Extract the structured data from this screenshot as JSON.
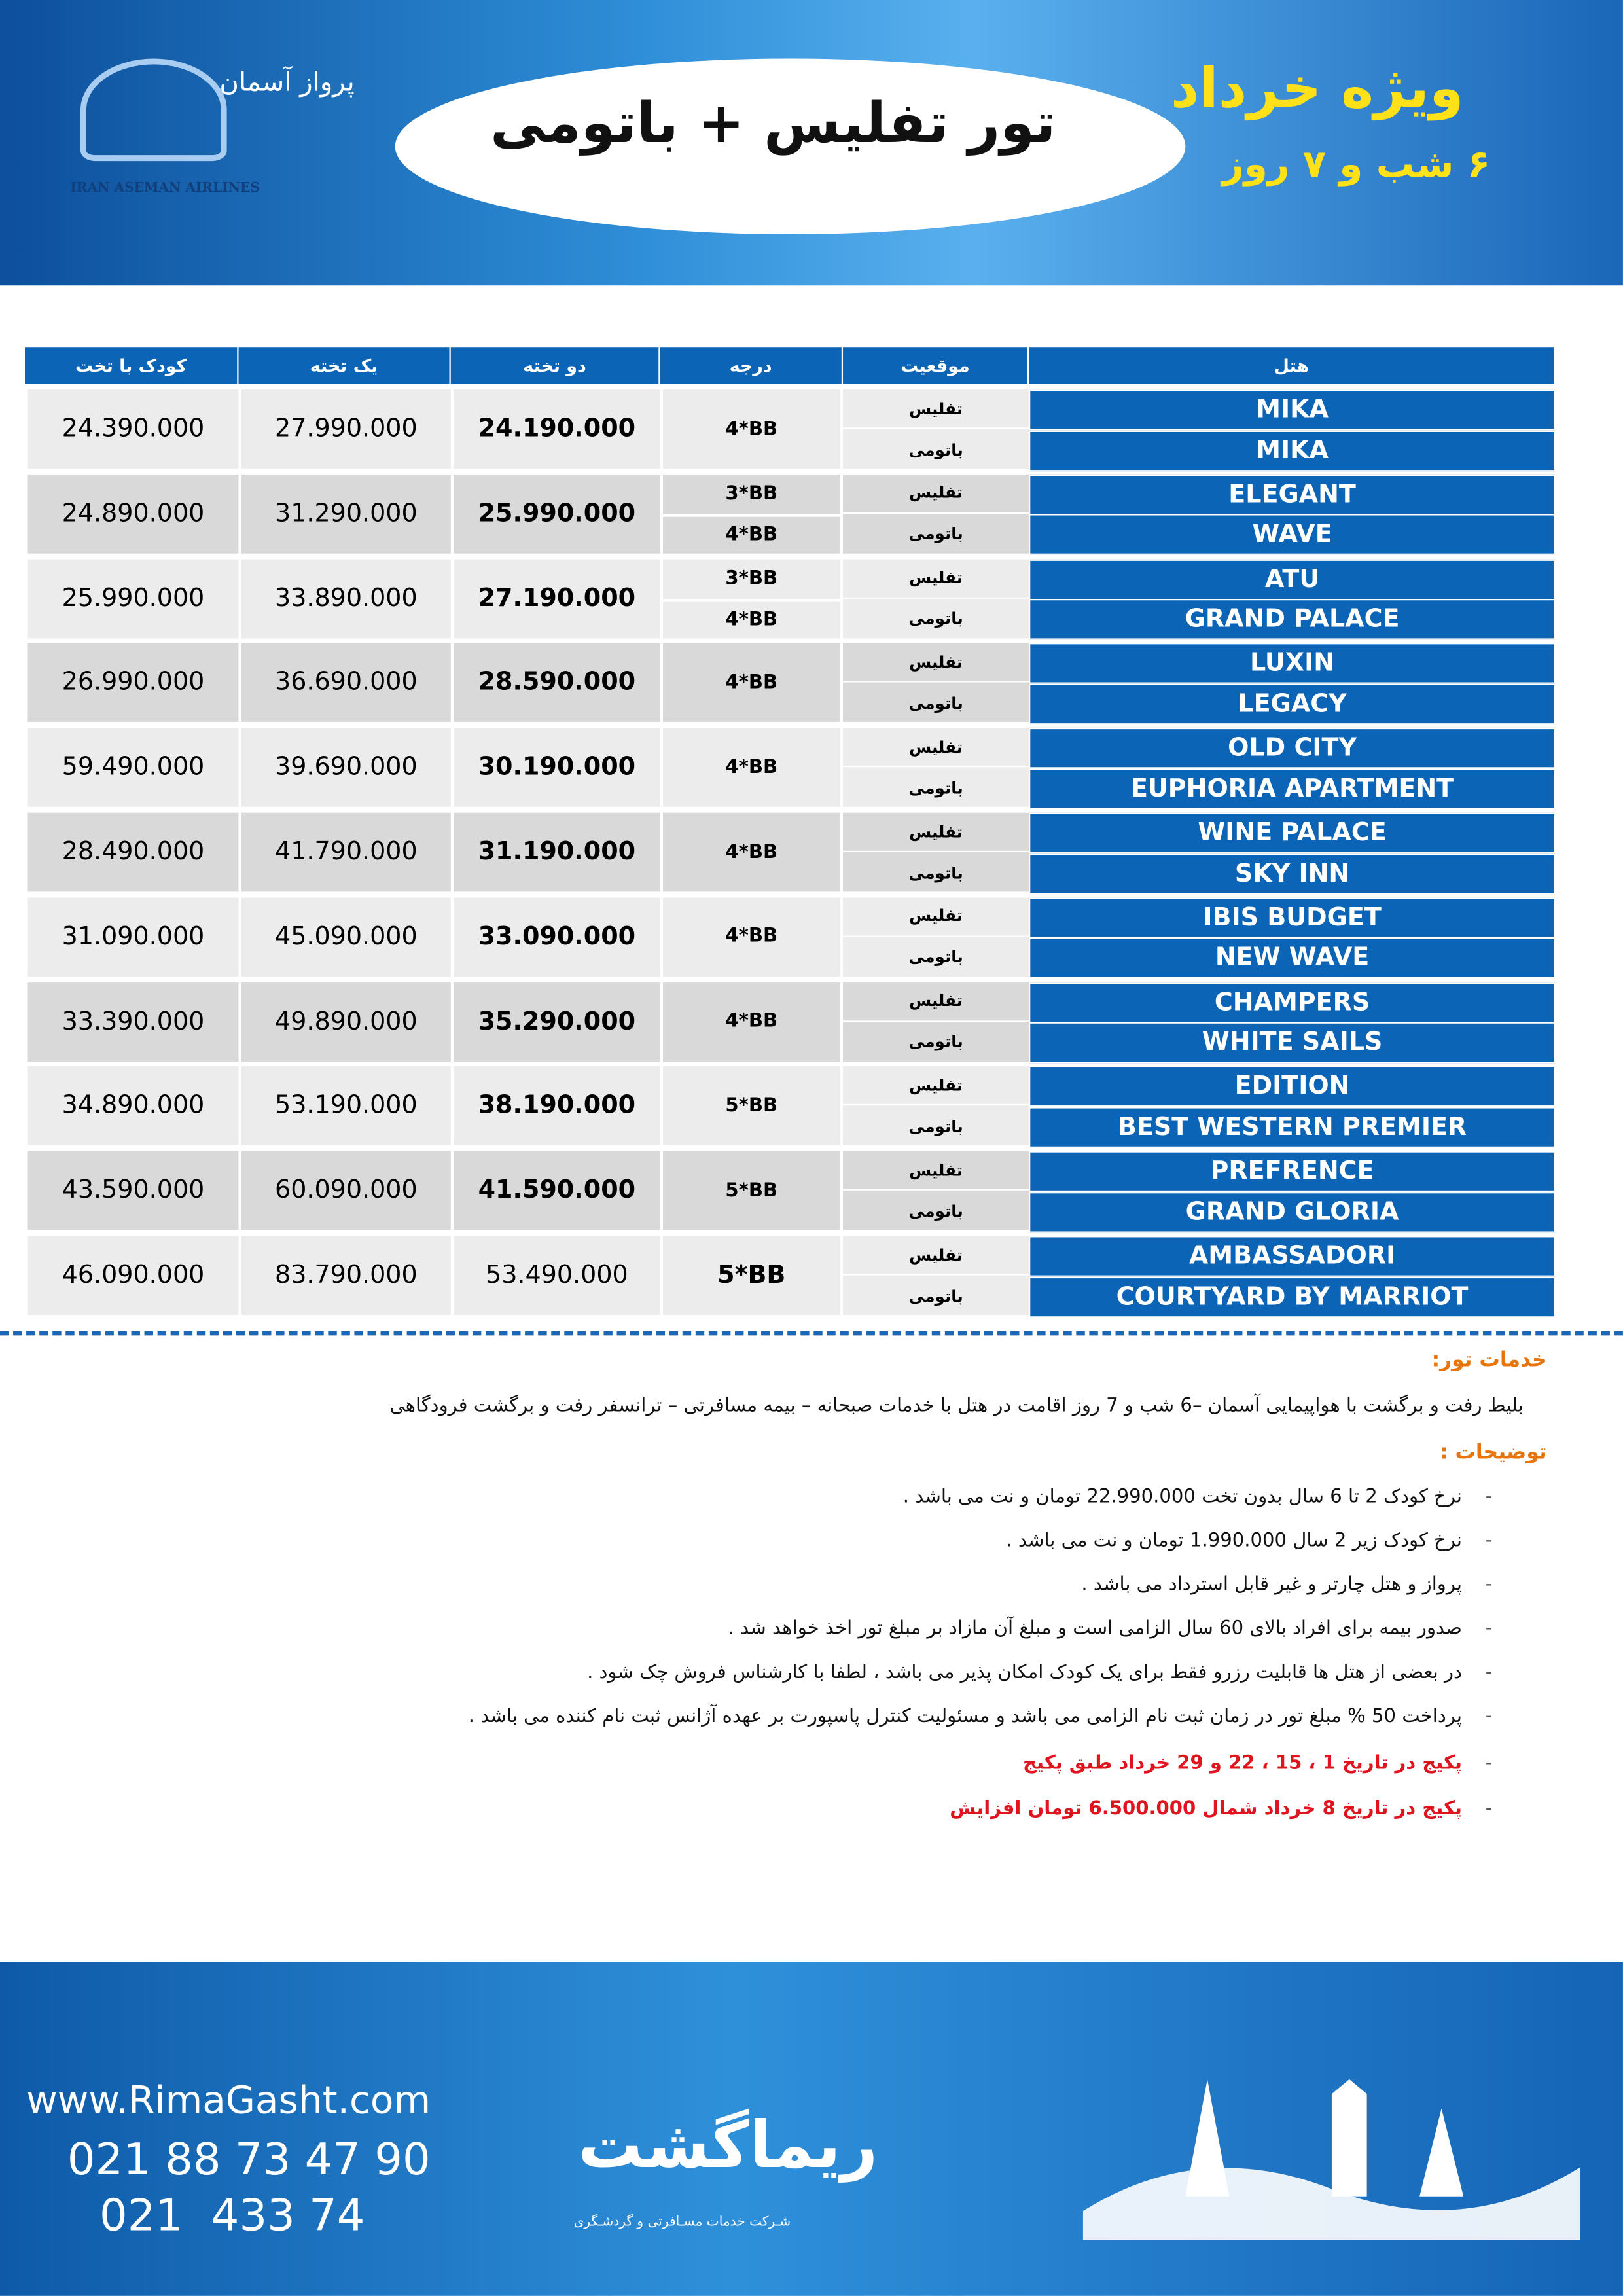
{
  "header": {
    "airline_fa": "پرواز آسمان",
    "airline_en": "IRAN ASEMAN AIRLINES",
    "title": "تور تفلیس + باتومی",
    "special": "ویژه خرداد",
    "duration": "۶ شب و ۷ روز"
  },
  "table": {
    "columns": [
      "هتل",
      "موقعیت",
      "درجه",
      "دو تخته",
      "یک تخته",
      "کودک با تخت"
    ],
    "groups": [
      {
        "hotels": [
          "MIKA",
          "MIKA"
        ],
        "locations": [
          "تفلیس",
          "باتومی"
        ],
        "grades": [
          "4*BB"
        ],
        "double": "24.190.000",
        "single": "27.990.000",
        "child": "24.390.000"
      },
      {
        "hotels": [
          "ELEGANT",
          "WAVE"
        ],
        "locations": [
          "تفلیس",
          "باتومی"
        ],
        "grades": [
          "3*BB",
          "4*BB"
        ],
        "double": "25.990.000",
        "single": "31.290.000",
        "child": "24.890.000"
      },
      {
        "hotels": [
          "ATU",
          "GRAND PALACE"
        ],
        "locations": [
          "تفلیس",
          "باتومی"
        ],
        "grades": [
          "3*BB",
          "4*BB"
        ],
        "double": "27.190.000",
        "single": "33.890.000",
        "child": "25.990.000"
      },
      {
        "hotels": [
          "LUXIN",
          "LEGACY"
        ],
        "locations": [
          "تفلیس",
          "باتومی"
        ],
        "grades": [
          "4*BB"
        ],
        "double": "28.590.000",
        "single": "36.690.000",
        "child": "26.990.000"
      },
      {
        "hotels": [
          "OLD CITY",
          "EUPHORIA APARTMENT"
        ],
        "locations": [
          "تفلیس",
          "باتومی"
        ],
        "grades": [
          "4*BB"
        ],
        "double": "30.190.000",
        "single": "39.690.000",
        "child": "59.490.000"
      },
      {
        "hotels": [
          "WINE PALACE",
          "SKY INN"
        ],
        "locations": [
          "تفلیس",
          "باتومی"
        ],
        "grades": [
          "4*BB"
        ],
        "double": "31.190.000",
        "single": "41.790.000",
        "child": "28.490.000"
      },
      {
        "hotels": [
          "IBIS BUDGET",
          "NEW WAVE"
        ],
        "locations": [
          "تفلیس",
          "باتومی"
        ],
        "grades": [
          "4*BB"
        ],
        "double": "33.090.000",
        "single": "45.090.000",
        "child": "31.090.000"
      },
      {
        "hotels": [
          "CHAMPERS",
          "WHITE SAILS"
        ],
        "locations": [
          "تفلیس",
          "باتومی"
        ],
        "grades": [
          "4*BB"
        ],
        "double": "35.290.000",
        "single": "49.890.000",
        "child": "33.390.000"
      },
      {
        "hotels": [
          "EDITION",
          "BEST WESTERN PREMIER"
        ],
        "locations": [
          "تفلیس",
          "باتومی"
        ],
        "grades": [
          "5*BB"
        ],
        "double": "38.190.000",
        "single": "53.190.000",
        "child": "34.890.000"
      },
      {
        "hotels": [
          "PREFRENCE",
          "GRAND GLORIA"
        ],
        "locations": [
          "تفلیس",
          "باتومی"
        ],
        "grades": [
          "5*BB"
        ],
        "double": "41.590.000",
        "single": "60.090.000",
        "child": "43.590.000"
      },
      {
        "hotels": [
          "AMBASSADORI",
          "COURTYARD BY MARRIOT"
        ],
        "locations": [
          "تفلیس",
          "باتومی"
        ],
        "grades": [
          "5*BB"
        ],
        "double": "53.490.000",
        "single": "83.790.000",
        "child": "46.090.000"
      }
    ]
  },
  "services": {
    "title": "خدمات تور:",
    "text": "بلیط رفت و برگشت  با هواپیمایی  آسمان –6  شب و 7 روز   اقامت در هتل  با خدمات صبحانه – بیمه مسافرتی – ترانسفر رفت و برگشت فرودگاهی"
  },
  "notes": {
    "title": "توضیحات :",
    "items": [
      "نرخ کودک 2 تا 6 سال  بدون  تخت   22.990.000   تومان و نت می باشد .",
      "نرخ کودک زیر 2 سال  1.990.000  تومان و نت می باشد .",
      "پرواز و هتل چارتر و غیر قابل استرداد می باشد .",
      "صدور بیمه برای افراد بالای 60 سال الزامی است و مبلغ آن مازاد بر مبلغ تور اخذ خواهد شد .",
      "در بعضی از هتل ها قابلیت رزرو فقط برای یک کودک امکان پذیر می باشد ، لطفا با کارشناس فروش چک شود .",
      "پرداخت 50 % مبلغ تور در زمان ثبت نام الزامی می باشد و مسئولیت کنترل پاسپورت بر عهده آژانس ثبت نام کننده می باشد .",
      "پکیج در تاریخ 1 ، 15 ، 22 و 29 خرداد طبق پکیج",
      "پکیج در تاریخ  8 خرداد شمال 6.500.000 تومان افزایش"
    ]
  },
  "footer": {
    "website": "www.RimaGasht.com",
    "phones": [
      "021 88 73 47 90",
      "021  433 74"
    ],
    "brand": "ریماگشت",
    "tagline": "شـرکت خدمات مسـافرتی و گردشـگری"
  }
}
